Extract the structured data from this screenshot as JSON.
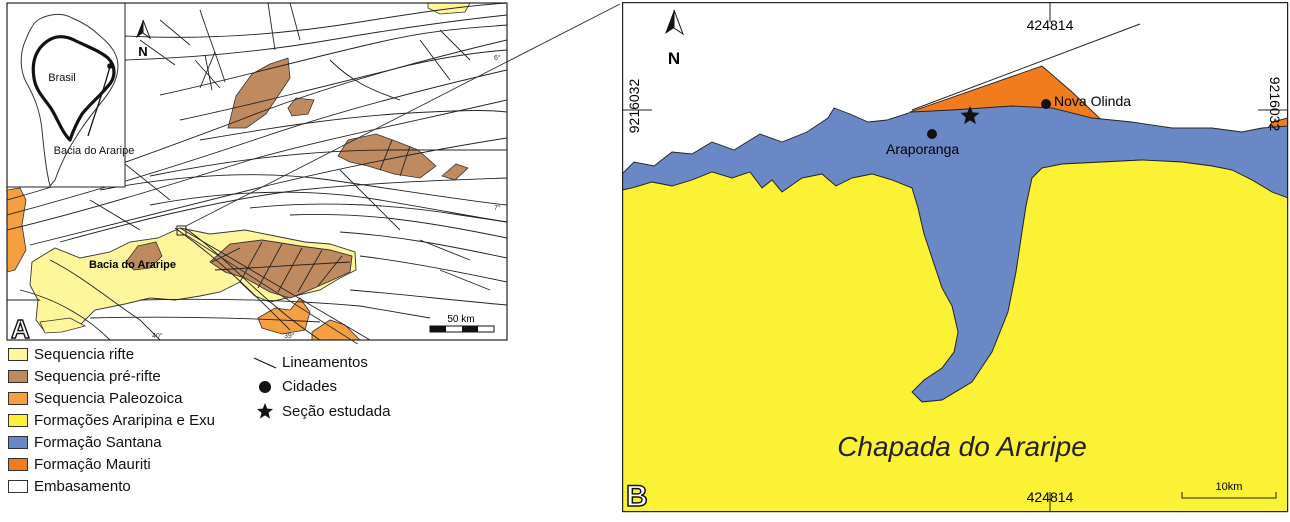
{
  "panel_a": {
    "letter": "A",
    "inset": {
      "country": "Brasil",
      "basin": "Bacia do Araripe",
      "north": "N"
    },
    "basin_label": "Bacia do Araripe",
    "north": "N",
    "lat_ticks": [
      "6°",
      "7°"
    ],
    "lon_ticks": [
      "40°",
      "39°"
    ],
    "scale_label": "50 km",
    "colors": {
      "rift": "#fff59a",
      "pre_rift": "#c08a60",
      "paleozoic": "#f5a040"
    }
  },
  "panel_b": {
    "letter": "B",
    "north": "N",
    "coord_top": "424814",
    "coord_bottom": "424814",
    "coord_left": "9216032",
    "coord_right": "9216032",
    "region_label": "Chapada do Araripe",
    "scale_label": "10km",
    "cities": [
      {
        "name": "Nova Olinda"
      },
      {
        "name": "Araporanga"
      }
    ],
    "colors": {
      "araripina_exu": "#fbf235",
      "santana": "#6b88c6",
      "mauriti": "#f07c1e"
    }
  },
  "legend": {
    "units": [
      {
        "label": "Sequencia rifte",
        "color": "#fff59a"
      },
      {
        "label": "Sequencia pré-rifte",
        "color": "#c08a60"
      },
      {
        "label": "Sequencia Paleozoica",
        "color": "#f5a040"
      },
      {
        "label": "Formações Araripina e Exu",
        "color": "#fbf235"
      },
      {
        "label": "Formação Santana",
        "color": "#6b88c6"
      },
      {
        "label": "Formação Mauriti",
        "color": "#f07c1e"
      },
      {
        "label": "Embasamento",
        "color": "#ffffff"
      }
    ],
    "symbols": [
      {
        "label": "Lineamentos",
        "icon": "line-icon"
      },
      {
        "label": "Cidades",
        "icon": "dot-icon"
      },
      {
        "label": "Seção estudada",
        "icon": "star-icon"
      }
    ]
  }
}
